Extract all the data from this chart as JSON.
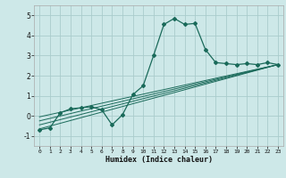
{
  "xlabel": "Humidex (Indice chaleur)",
  "ylabel": "",
  "xlim": [
    -0.5,
    23.5
  ],
  "ylim": [
    -1.5,
    5.5
  ],
  "yticks": [
    -1,
    0,
    1,
    2,
    3,
    4,
    5
  ],
  "xticks": [
    0,
    1,
    2,
    3,
    4,
    5,
    6,
    7,
    8,
    9,
    10,
    11,
    12,
    13,
    14,
    15,
    16,
    17,
    18,
    19,
    20,
    21,
    22,
    23
  ],
  "background_color": "#cde8e8",
  "grid_color": "#aacccc",
  "line_color": "#1a6a5a",
  "main_line_x": [
    0,
    1,
    2,
    3,
    4,
    5,
    6,
    7,
    8,
    9,
    10,
    11,
    12,
    13,
    14,
    15,
    16,
    17,
    18,
    19,
    20,
    21,
    22,
    23
  ],
  "main_line_y": [
    -0.7,
    -0.6,
    0.15,
    0.35,
    0.4,
    0.45,
    0.3,
    -0.45,
    0.05,
    1.05,
    1.5,
    3.0,
    4.55,
    4.85,
    4.55,
    4.6,
    3.3,
    2.65,
    2.6,
    2.55,
    2.6,
    2.55,
    2.65,
    2.55
  ],
  "trend_lines": [
    {
      "x": [
        0,
        23
      ],
      "y": [
        -0.65,
        2.55
      ]
    },
    {
      "x": [
        0,
        23
      ],
      "y": [
        -0.45,
        2.55
      ]
    },
    {
      "x": [
        0,
        23
      ],
      "y": [
        -0.25,
        2.55
      ]
    },
    {
      "x": [
        0,
        23
      ],
      "y": [
        -0.05,
        2.55
      ]
    }
  ]
}
